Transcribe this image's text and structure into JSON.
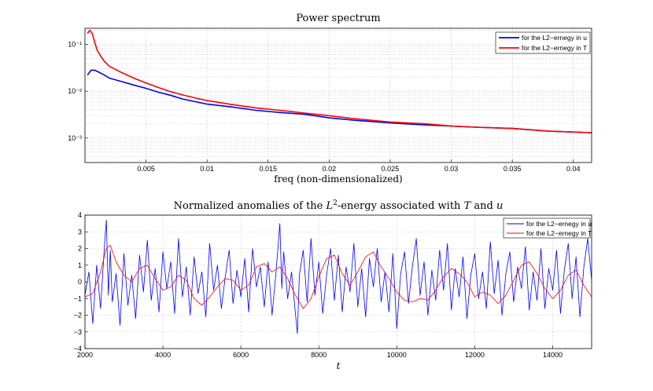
{
  "colors": {
    "u": "#0000ff",
    "T": "#ff0000",
    "grid": "#b0b0b0",
    "axis": "#000000"
  },
  "chart_data": [
    {
      "type": "line",
      "title": "Power spectrum",
      "xlabel": "freq (non-dimensionalized)",
      "ylabel": "",
      "yscale": "log",
      "xlim": [
        0,
        0.0415
      ],
      "ylim": [
        0.0003,
        0.22
      ],
      "grid": true,
      "legend_position": "top-right",
      "x_ticks": [
        0.005,
        0.01,
        0.015,
        0.02,
        0.025,
        0.03,
        0.035,
        0.04
      ],
      "x_tick_labels": [
        "0.005",
        "0.01",
        "0.015",
        "0.02",
        "0.025",
        "0.03",
        "0.035",
        "0.04"
      ],
      "y_ticks": [
        0.1,
        0.01,
        0.001
      ],
      "y_tick_labels": [
        "10⁻¹",
        "10⁻²",
        "10⁻³"
      ],
      "series": [
        {
          "name": "for the L2−ernegy in u",
          "color_key": "u",
          "x": [
            0.0002,
            0.0005,
            0.0008,
            0.0012,
            0.0016,
            0.002,
            0.003,
            0.004,
            0.005,
            0.006,
            0.007,
            0.008,
            0.009,
            0.01,
            0.012,
            0.014,
            0.016,
            0.018,
            0.02,
            0.022,
            0.025,
            0.028,
            0.03,
            0.032,
            0.035,
            0.038,
            0.0415
          ],
          "y": [
            0.022,
            0.028,
            0.028,
            0.025,
            0.022,
            0.019,
            0.016,
            0.0135,
            0.0115,
            0.0095,
            0.0082,
            0.0068,
            0.006,
            0.0053,
            0.0046,
            0.0039,
            0.0035,
            0.0032,
            0.0027,
            0.0024,
            0.0021,
            0.0019,
            0.0018,
            0.0017,
            0.0016,
            0.0014,
            0.0013
          ]
        },
        {
          "name": "for the L2−ernegy in T",
          "color_key": "T",
          "x": [
            0.0002,
            0.0004,
            0.0006,
            0.0008,
            0.001,
            0.0013,
            0.0016,
            0.002,
            0.003,
            0.004,
            0.005,
            0.006,
            0.007,
            0.008,
            0.009,
            0.01,
            0.012,
            0.014,
            0.016,
            0.018,
            0.02,
            0.022,
            0.025,
            0.028,
            0.03,
            0.032,
            0.035,
            0.038,
            0.0415
          ],
          "y": [
            0.17,
            0.2,
            0.17,
            0.11,
            0.075,
            0.055,
            0.043,
            0.034,
            0.025,
            0.019,
            0.015,
            0.012,
            0.0098,
            0.0083,
            0.0072,
            0.0063,
            0.0052,
            0.0044,
            0.0039,
            0.0034,
            0.003,
            0.0026,
            0.0022,
            0.002,
            0.0018,
            0.0017,
            0.0016,
            0.0014,
            0.0013
          ]
        }
      ]
    },
    {
      "type": "line",
      "title": "Normalized anomalies of the L²-energy associated with T and u",
      "title_parts": [
        "Normalized anomalies of the ",
        "L",
        "2",
        "-energy associated with ",
        "T",
        " and ",
        "u"
      ],
      "xlabel": "t",
      "ylabel": "",
      "xlim": [
        2000,
        15000
      ],
      "ylim": [
        -4,
        4
      ],
      "grid": true,
      "legend_position": "top-right",
      "x_ticks": [
        2000,
        4000,
        6000,
        8000,
        10000,
        12000,
        14000
      ],
      "x_tick_labels": [
        "2000",
        "4000",
        "6000",
        "8000",
        "10000",
        "12000",
        "14000"
      ],
      "y_ticks": [
        4,
        3,
        2,
        1,
        0,
        -1,
        -2,
        -3,
        -4
      ],
      "y_tick_labels": [
        "4",
        "3",
        "2",
        "1",
        "0",
        "−1",
        "−2",
        "−3",
        "−4"
      ],
      "series": [
        {
          "name": "for the L2−ernegy in u",
          "color_key": "u",
          "x": [
            2000,
            2100,
            2200,
            2300,
            2400,
            2500,
            2550,
            2600,
            2650,
            2700,
            2800,
            2900,
            3000,
            3100,
            3200,
            3300,
            3400,
            3500,
            3600,
            3700,
            3800,
            3900,
            4000,
            4100,
            4200,
            4300,
            4400,
            4500,
            4600,
            4700,
            4800,
            4900,
            5000,
            5100,
            5200,
            5300,
            5400,
            5500,
            5600,
            5700,
            5800,
            5900,
            6000,
            6100,
            6200,
            6300,
            6400,
            6500,
            6600,
            6700,
            6800,
            6900,
            7000,
            7050,
            7100,
            7200,
            7300,
            7400,
            7450,
            7500,
            7600,
            7700,
            7800,
            7900,
            8000,
            8100,
            8200,
            8300,
            8400,
            8500,
            8600,
            8700,
            8800,
            8900,
            9000,
            9100,
            9200,
            9300,
            9400,
            9500,
            9600,
            9700,
            9800,
            9900,
            10000,
            10100,
            10200,
            10300,
            10400,
            10500,
            10600,
            10700,
            10800,
            10900,
            11000,
            11100,
            11200,
            11300,
            11400,
            11500,
            11600,
            11700,
            11800,
            11900,
            12000,
            12100,
            12200,
            12300,
            12400,
            12500,
            12600,
            12700,
            12800,
            12900,
            13000,
            13100,
            13200,
            13300,
            13400,
            13500,
            13600,
            13700,
            13800,
            13900,
            14000,
            14100,
            14200,
            14300,
            14400,
            14500,
            14600,
            14700,
            14800,
            14900,
            15000
          ],
          "y": [
            -0.8,
            0.6,
            -2.5,
            1.0,
            -1.6,
            2.2,
            3.7,
            -0.8,
            1.9,
            -1.2,
            0.5,
            -2.6,
            1.7,
            -1.4,
            0.4,
            -2.2,
            1.6,
            -0.6,
            2.5,
            -1.1,
            0.8,
            -1.8,
            1.8,
            -0.4,
            1.2,
            -1.9,
            2.6,
            -0.9,
            0.9,
            -2.0,
            1.5,
            -0.7,
            0.6,
            -2.1,
            2.3,
            -0.5,
            1.0,
            -1.6,
            0.3,
            1.9,
            -1.3,
            0.7,
            -0.9,
            1.4,
            -1.8,
            2.0,
            -0.3,
            0.9,
            -1.5,
            1.2,
            -2.0,
            0.5,
            3.5,
            -0.4,
            1.8,
            -1.0,
            0.6,
            -1.9,
            -3.1,
            0.4,
            1.9,
            -1.2,
            2.6,
            -0.8,
            1.2,
            -1.9,
            0.4,
            2.0,
            -1.1,
            1.6,
            -1.8,
            0.9,
            -0.6,
            2.3,
            -1.5,
            0.8,
            -2.1,
            1.4,
            -0.3,
            2.0,
            -1.2,
            0.6,
            -1.8,
            1.7,
            -2.8,
            0.5,
            1.8,
            -1.3,
            0.9,
            2.6,
            -0.8,
            1.2,
            -2.0,
            0.7,
            -1.1,
            1.9,
            -0.5,
            2.3,
            -1.7,
            0.8,
            -0.9,
            1.5,
            -2.2,
            0.4,
            1.7,
            -1.0,
            0.6,
            -1.6,
            2.4,
            -0.7,
            1.3,
            -2.0,
            0.5,
            1.8,
            -1.2,
            0.9,
            -0.4,
            2.1,
            -1.7,
            0.6,
            -1.1,
            2.0,
            -1.6,
            0.8,
            -0.5,
            1.9,
            -1.9,
            0.7,
            2.3,
            -1.0,
            1.5,
            -2.1,
            0.9,
            2.6,
            0.1
          ]
        },
        {
          "name": "for the L2−ernegy in T",
          "color_key": "T",
          "x": [
            2000,
            2200,
            2400,
            2550,
            2650,
            2800,
            3000,
            3200,
            3400,
            3600,
            3800,
            4000,
            4200,
            4400,
            4600,
            4800,
            5000,
            5200,
            5400,
            5600,
            5800,
            6000,
            6200,
            6400,
            6600,
            6800,
            7000,
            7200,
            7400,
            7600,
            7800,
            8000,
            8200,
            8400,
            8600,
            8800,
            9000,
            9200,
            9400,
            9600,
            9800,
            10000,
            10200,
            10400,
            10600,
            10800,
            11000,
            11200,
            11400,
            11600,
            11800,
            12000,
            12200,
            12400,
            12600,
            12800,
            13000,
            13200,
            13400,
            13600,
            13800,
            14000,
            14200,
            14400,
            14600,
            14800,
            15000
          ],
          "y": [
            -0.9,
            -0.7,
            0.6,
            2.0,
            2.2,
            1.2,
            0.4,
            0.0,
            0.8,
            1.0,
            0.2,
            -0.5,
            -0.3,
            0.4,
            0.1,
            -1.0,
            -1.4,
            -0.9,
            -0.3,
            0.2,
            0.1,
            -0.5,
            -0.2,
            0.9,
            1.1,
            0.6,
            0.9,
            0.2,
            -0.8,
            -1.6,
            -1.0,
            0.3,
            1.4,
            1.6,
            0.5,
            -0.2,
            0.6,
            1.5,
            1.8,
            0.9,
            0.2,
            -0.6,
            -1.1,
            -1.2,
            -1.0,
            -1.1,
            -0.5,
            0.3,
            0.8,
            0.5,
            0.0,
            -0.9,
            -0.6,
            -0.8,
            -1.3,
            -0.8,
            0.1,
            1.0,
            1.2,
            0.5,
            -0.4,
            -1.0,
            -0.5,
            0.4,
            0.7,
            -0.2,
            -0.9
          ]
        }
      ]
    }
  ]
}
